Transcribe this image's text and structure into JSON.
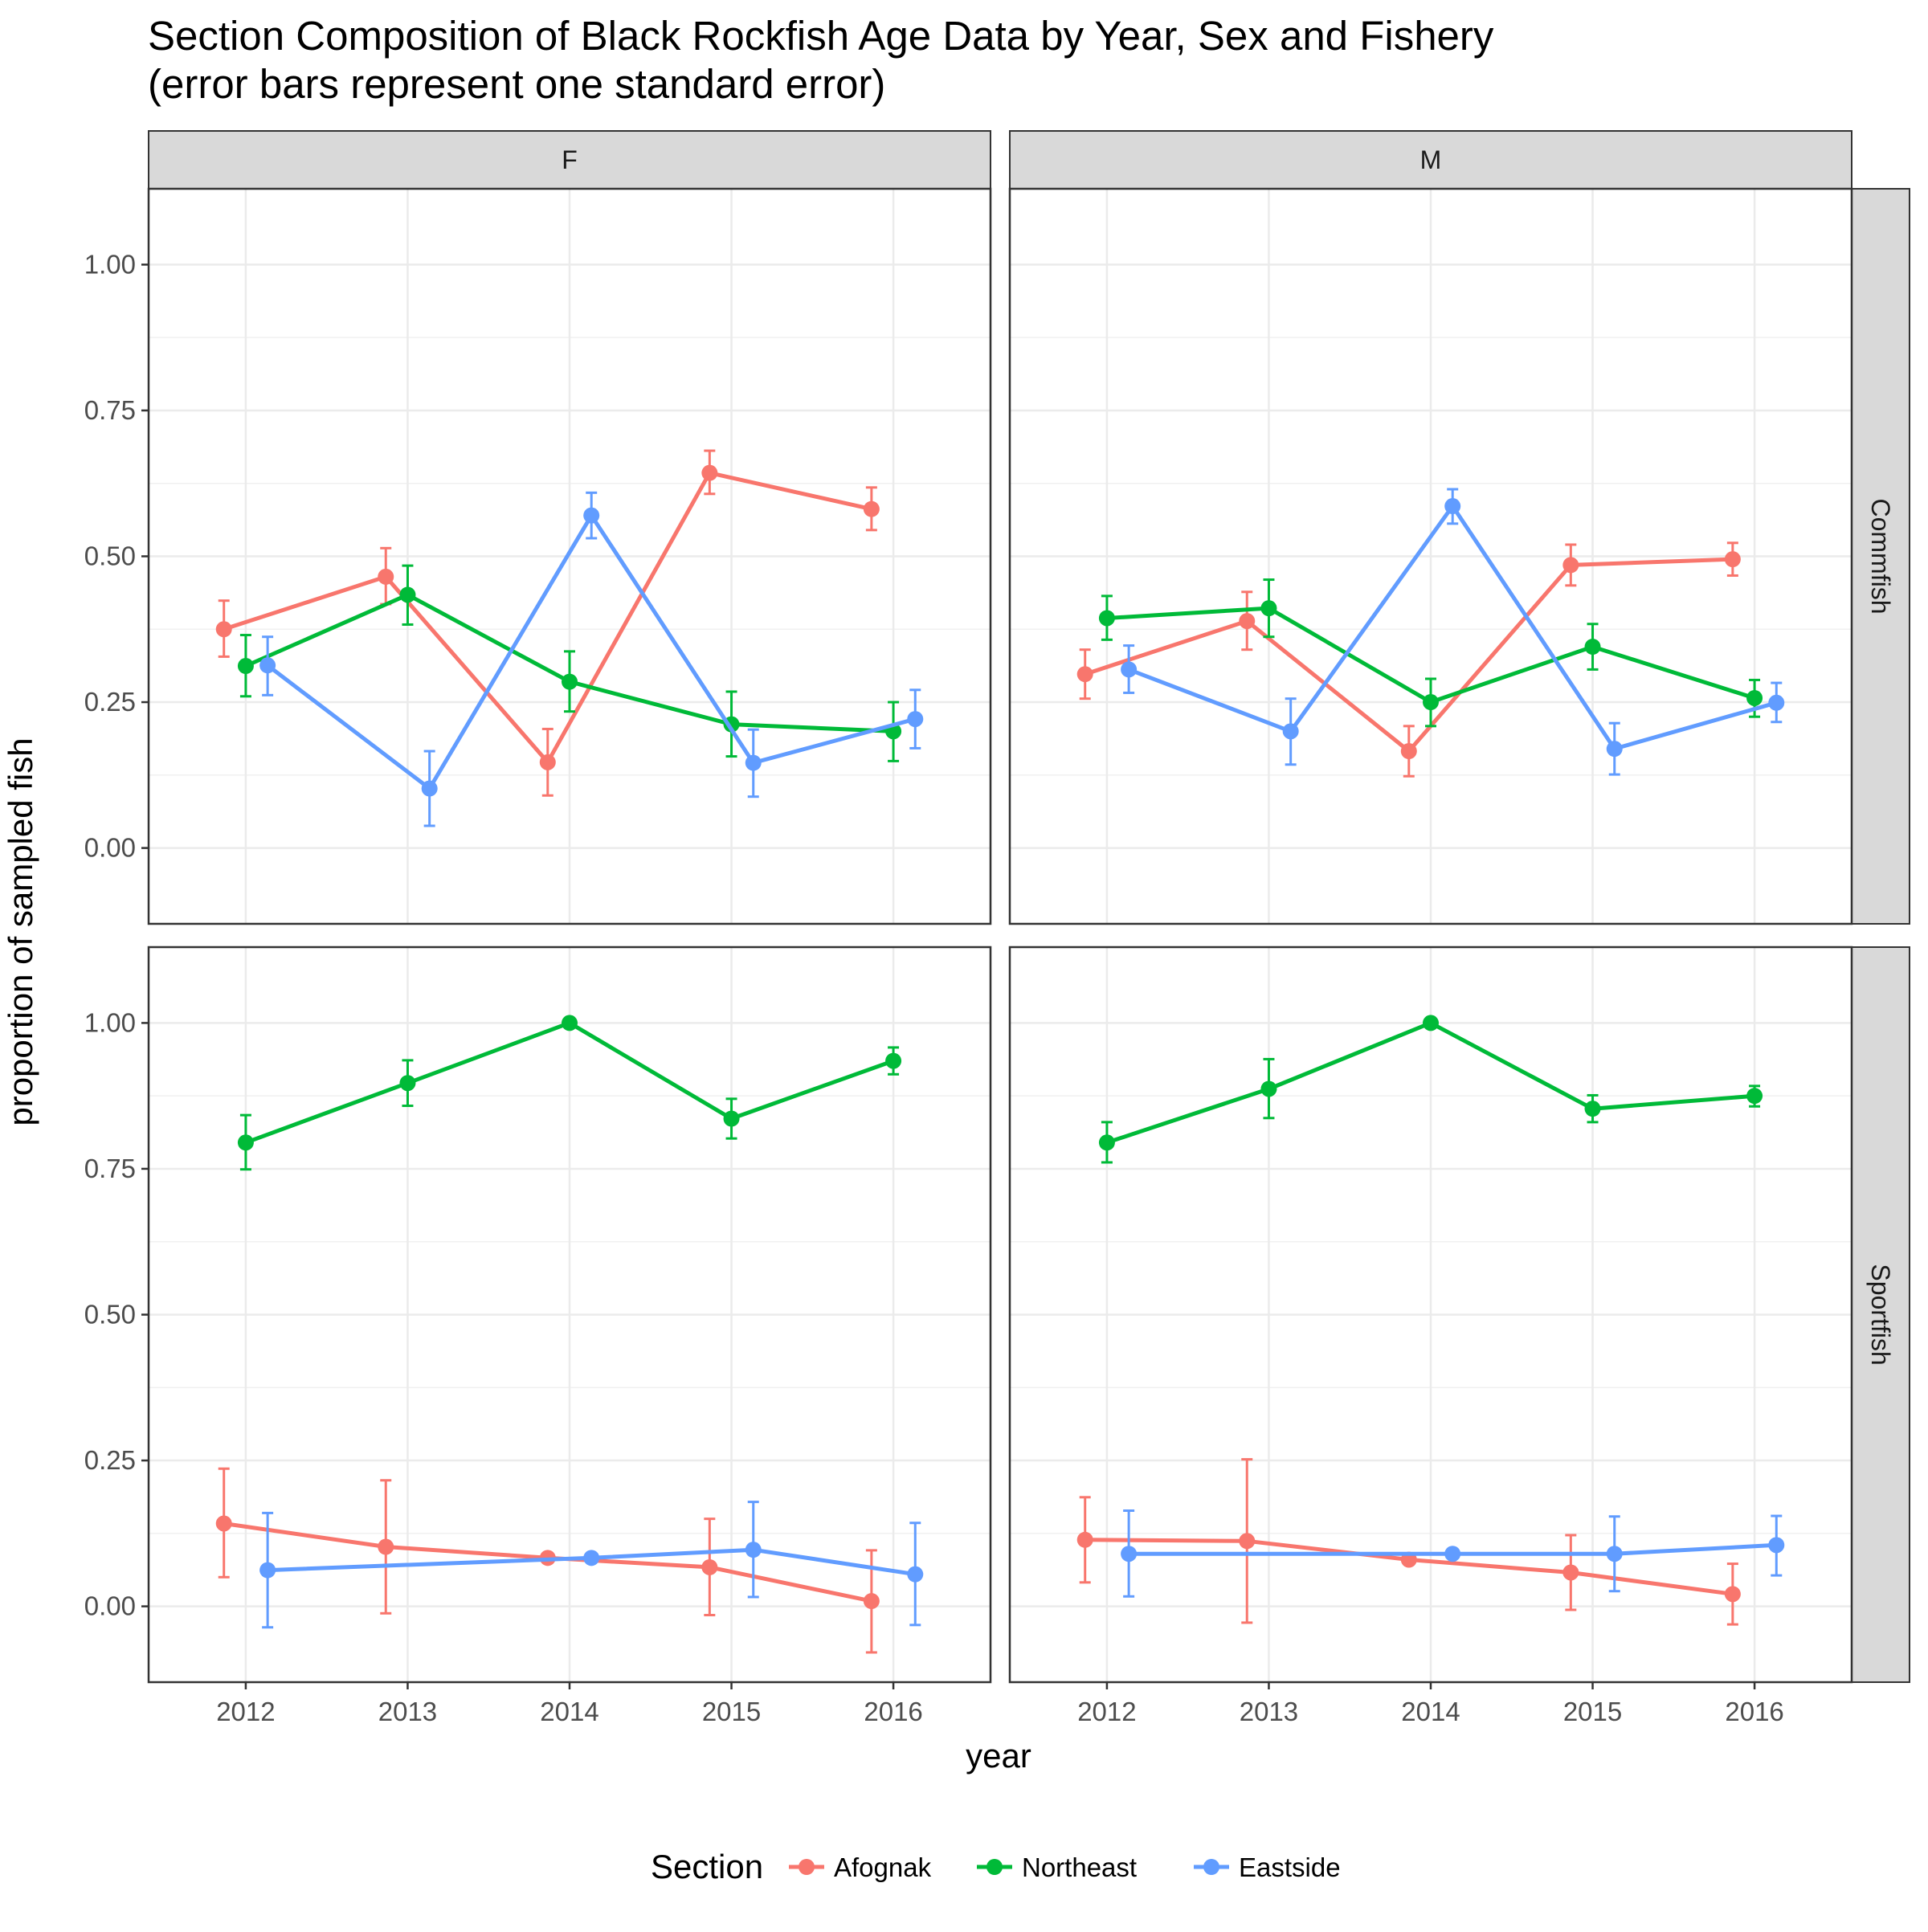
{
  "chart_data": {
    "type": "line",
    "title": "Section Composition of Black Rockfish Age Data by Year, Sex and Fishery",
    "subtitle": "(error bars represent one standard error)",
    "xlabel": "year",
    "ylabel": "proportion of sampled fish",
    "x": [
      2012,
      2013,
      2014,
      2015,
      2016
    ],
    "xlim": [
      2011.4,
      2016.6
    ],
    "ylim": [
      -0.13,
      1.13
    ],
    "y_ticks": [
      0.0,
      0.25,
      0.5,
      0.75,
      1.0
    ],
    "y_tick_labels": [
      "0.00",
      "0.25",
      "0.50",
      "0.75",
      "1.00"
    ],
    "x_tick_labels": [
      "2012",
      "2013",
      "2014",
      "2015",
      "2016"
    ],
    "grid": true,
    "legend": {
      "position": "bottom",
      "title": "Section",
      "entries": [
        {
          "name": "Afognak",
          "color": "#F8766D"
        },
        {
          "name": "Northeast",
          "color": "#00BA38"
        },
        {
          "name": "Eastside",
          "color": "#619CFF"
        }
      ]
    },
    "facet_columns": [
      "F",
      "M"
    ],
    "facet_rows": [
      "Commfish",
      "Sportfish"
    ],
    "panels": [
      {
        "col": "F",
        "row": "Commfish",
        "series": [
          {
            "name": "Afognak",
            "points": [
              {
                "x": 2012,
                "y": 0.375,
                "lo": 0.328,
                "hi": 0.424
              },
              {
                "x": 2013,
                "y": 0.465,
                "lo": 0.418,
                "hi": 0.514
              },
              {
                "x": 2014,
                "y": 0.147,
                "lo": 0.09,
                "hi": 0.204
              },
              {
                "x": 2015,
                "y": 0.643,
                "lo": 0.607,
                "hi": 0.681
              },
              {
                "x": 2016,
                "y": 0.581,
                "lo": 0.545,
                "hi": 0.618
              }
            ]
          },
          {
            "name": "Northeast",
            "points": [
              {
                "x": 2012,
                "y": 0.312,
                "lo": 0.26,
                "hi": 0.365
              },
              {
                "x": 2013,
                "y": 0.434,
                "lo": 0.383,
                "hi": 0.484
              },
              {
                "x": 2014,
                "y": 0.285,
                "lo": 0.234,
                "hi": 0.337
              },
              {
                "x": 2015,
                "y": 0.212,
                "lo": 0.157,
                "hi": 0.268
              },
              {
                "x": 2016,
                "y": 0.2,
                "lo": 0.149,
                "hi": 0.25
              }
            ]
          },
          {
            "name": "Eastside",
            "points": [
              {
                "x": 2012,
                "y": 0.313,
                "lo": 0.262,
                "hi": 0.362
              },
              {
                "x": 2013,
                "y": 0.102,
                "lo": 0.038,
                "hi": 0.166
              },
              {
                "x": 2014,
                "y": 0.57,
                "lo": 0.531,
                "hi": 0.609
              },
              {
                "x": 2015,
                "y": 0.146,
                "lo": 0.088,
                "hi": 0.203
              },
              {
                "x": 2016,
                "y": 0.221,
                "lo": 0.171,
                "hi": 0.271
              }
            ]
          }
        ]
      },
      {
        "col": "M",
        "row": "Commfish",
        "series": [
          {
            "name": "Afognak",
            "points": [
              {
                "x": 2012,
                "y": 0.298,
                "lo": 0.256,
                "hi": 0.34
              },
              {
                "x": 2013,
                "y": 0.389,
                "lo": 0.34,
                "hi": 0.439
              },
              {
                "x": 2014,
                "y": 0.166,
                "lo": 0.123,
                "hi": 0.209
              },
              {
                "x": 2015,
                "y": 0.485,
                "lo": 0.45,
                "hi": 0.52
              },
              {
                "x": 2016,
                "y": 0.495,
                "lo": 0.467,
                "hi": 0.523
              }
            ]
          },
          {
            "name": "Northeast",
            "points": [
              {
                "x": 2012,
                "y": 0.394,
                "lo": 0.357,
                "hi": 0.432
              },
              {
                "x": 2013,
                "y": 0.411,
                "lo": 0.362,
                "hi": 0.46
              },
              {
                "x": 2014,
                "y": 0.25,
                "lo": 0.209,
                "hi": 0.29
              },
              {
                "x": 2015,
                "y": 0.345,
                "lo": 0.306,
                "hi": 0.384
              },
              {
                "x": 2016,
                "y": 0.257,
                "lo": 0.225,
                "hi": 0.288
              }
            ]
          },
          {
            "name": "Eastside",
            "points": [
              {
                "x": 2012,
                "y": 0.306,
                "lo": 0.266,
                "hi": 0.347
              },
              {
                "x": 2013,
                "y": 0.2,
                "lo": 0.143,
                "hi": 0.256
              },
              {
                "x": 2014,
                "y": 0.586,
                "lo": 0.556,
                "hi": 0.615
              },
              {
                "x": 2015,
                "y": 0.17,
                "lo": 0.126,
                "hi": 0.214
              },
              {
                "x": 2016,
                "y": 0.249,
                "lo": 0.216,
                "hi": 0.283
              }
            ]
          }
        ]
      },
      {
        "col": "F",
        "row": "Sportfish",
        "series": [
          {
            "name": "Afognak",
            "points": [
              {
                "x": 2012,
                "y": 0.142,
                "lo": 0.05,
                "hi": 0.236
              },
              {
                "x": 2013,
                "y": 0.102,
                "lo": -0.012,
                "hi": 0.216
              },
              {
                "x": 2014,
                "y": 0.083,
                "lo": 0.083,
                "hi": 0.083
              },
              {
                "x": 2015,
                "y": 0.067,
                "lo": -0.015,
                "hi": 0.15
              },
              {
                "x": 2016,
                "y": 0.009,
                "lo": -0.079,
                "hi": 0.096
              }
            ]
          },
          {
            "name": "Northeast",
            "points": [
              {
                "x": 2012,
                "y": 0.795,
                "lo": 0.749,
                "hi": 0.842
              },
              {
                "x": 2013,
                "y": 0.897,
                "lo": 0.858,
                "hi": 0.936
              },
              {
                "x": 2014,
                "y": 1.0,
                "lo": 0.995,
                "hi": 1.005
              },
              {
                "x": 2015,
                "y": 0.836,
                "lo": 0.802,
                "hi": 0.87
              },
              {
                "x": 2016,
                "y": 0.935,
                "lo": 0.912,
                "hi": 0.958
              }
            ]
          },
          {
            "name": "Eastside",
            "points": [
              {
                "x": 2012,
                "y": 0.062,
                "lo": -0.036,
                "hi": 0.16
              },
              {
                "x": 2014,
                "y": 0.083,
                "lo": 0.083,
                "hi": 0.083
              },
              {
                "x": 2015,
                "y": 0.097,
                "lo": 0.016,
                "hi": 0.179
              },
              {
                "x": 2016,
                "y": 0.055,
                "lo": -0.032,
                "hi": 0.143
              }
            ]
          }
        ]
      },
      {
        "col": "M",
        "row": "Sportfish",
        "series": [
          {
            "name": "Afognak",
            "points": [
              {
                "x": 2012,
                "y": 0.114,
                "lo": 0.041,
                "hi": 0.187
              },
              {
                "x": 2013,
                "y": 0.112,
                "lo": -0.028,
                "hi": 0.252
              },
              {
                "x": 2014,
                "y": 0.08,
                "lo": 0.08,
                "hi": 0.08
              },
              {
                "x": 2015,
                "y": 0.058,
                "lo": -0.006,
                "hi": 0.122
              },
              {
                "x": 2016,
                "y": 0.021,
                "lo": -0.031,
                "hi": 0.073
              }
            ]
          },
          {
            "name": "Northeast",
            "points": [
              {
                "x": 2012,
                "y": 0.795,
                "lo": 0.761,
                "hi": 0.83
              },
              {
                "x": 2013,
                "y": 0.887,
                "lo": 0.837,
                "hi": 0.938
              },
              {
                "x": 2014,
                "y": 1.0,
                "lo": 0.995,
                "hi": 1.005
              },
              {
                "x": 2015,
                "y": 0.853,
                "lo": 0.83,
                "hi": 0.876
              },
              {
                "x": 2016,
                "y": 0.875,
                "lo": 0.857,
                "hi": 0.892
              }
            ]
          },
          {
            "name": "Eastside",
            "points": [
              {
                "x": 2012,
                "y": 0.09,
                "lo": 0.017,
                "hi": 0.164
              },
              {
                "x": 2014,
                "y": 0.09,
                "lo": 0.09,
                "hi": 0.09
              },
              {
                "x": 2015,
                "y": 0.09,
                "lo": 0.026,
                "hi": 0.154
              },
              {
                "x": 2016,
                "y": 0.105,
                "lo": 0.053,
                "hi": 0.155
              }
            ]
          }
        ]
      }
    ]
  }
}
